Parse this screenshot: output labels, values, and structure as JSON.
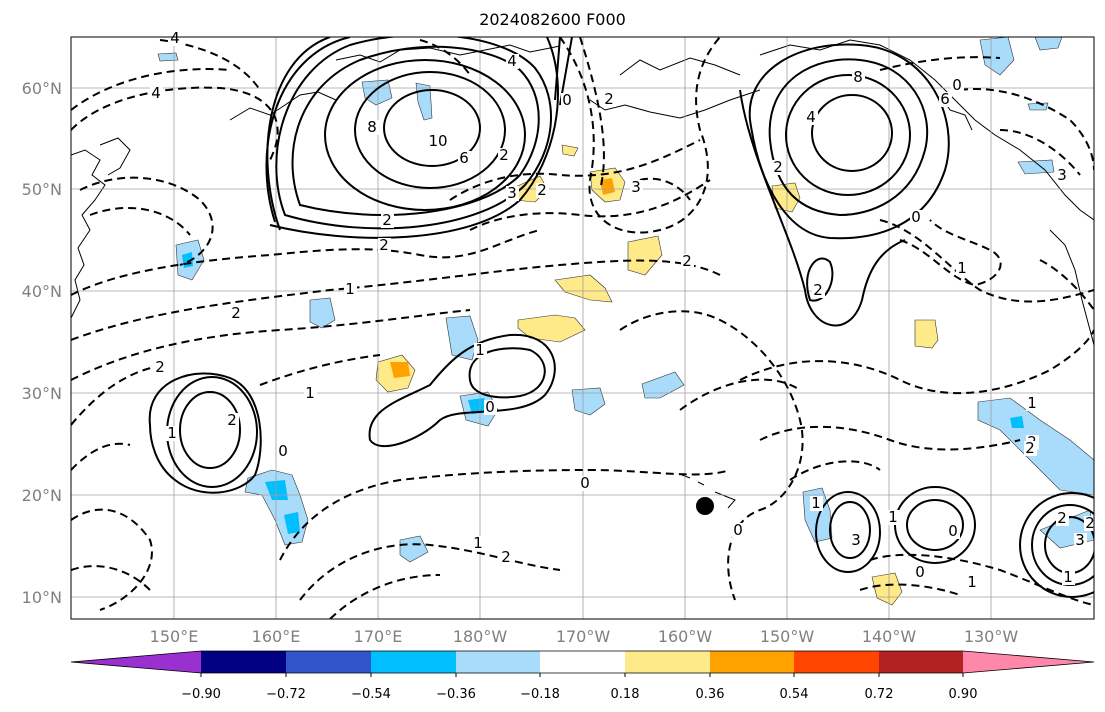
{
  "title": "2024082600 F000",
  "map": {
    "lon_labels": [
      "150°E",
      "160°E",
      "170°E",
      "180°W",
      "170°W",
      "160°W",
      "150°W",
      "140°W",
      "130°W"
    ],
    "lat_labels": [
      "60°N",
      "50°N",
      "40°N",
      "30°N",
      "20°N",
      "10°N"
    ],
    "marker": "storm-center-dot"
  },
  "colorbar": {
    "colors": [
      "#9b30d0",
      "#000080",
      "#3355cc",
      "#00bfff",
      "#a8dcfa",
      "#ffffff",
      "#ffea8a",
      "#ffa200",
      "#ff4500",
      "#b22222",
      "#ff88aa"
    ],
    "ticks": [
      "−0.90",
      "−0.72",
      "−0.54",
      "−0.36",
      "−0.18",
      "0.18",
      "0.36",
      "0.54",
      "0.72",
      "0.90"
    ]
  },
  "contour_labels": [
    "4",
    "4",
    "8",
    "10",
    "6",
    "2",
    "2",
    "4",
    "0",
    "2",
    "3",
    "2",
    "3",
    "2",
    "4",
    "8",
    "6",
    "0",
    "3",
    "2",
    "0",
    "1",
    "2",
    "2",
    "1",
    "2",
    "2",
    "1",
    "0",
    "1",
    "0",
    "2",
    "1",
    "0",
    "1",
    "2",
    "0",
    "1",
    "3",
    "1",
    "0",
    "2",
    "2",
    "1",
    "0",
    "1",
    "2",
    "3",
    "1",
    "2"
  ]
}
